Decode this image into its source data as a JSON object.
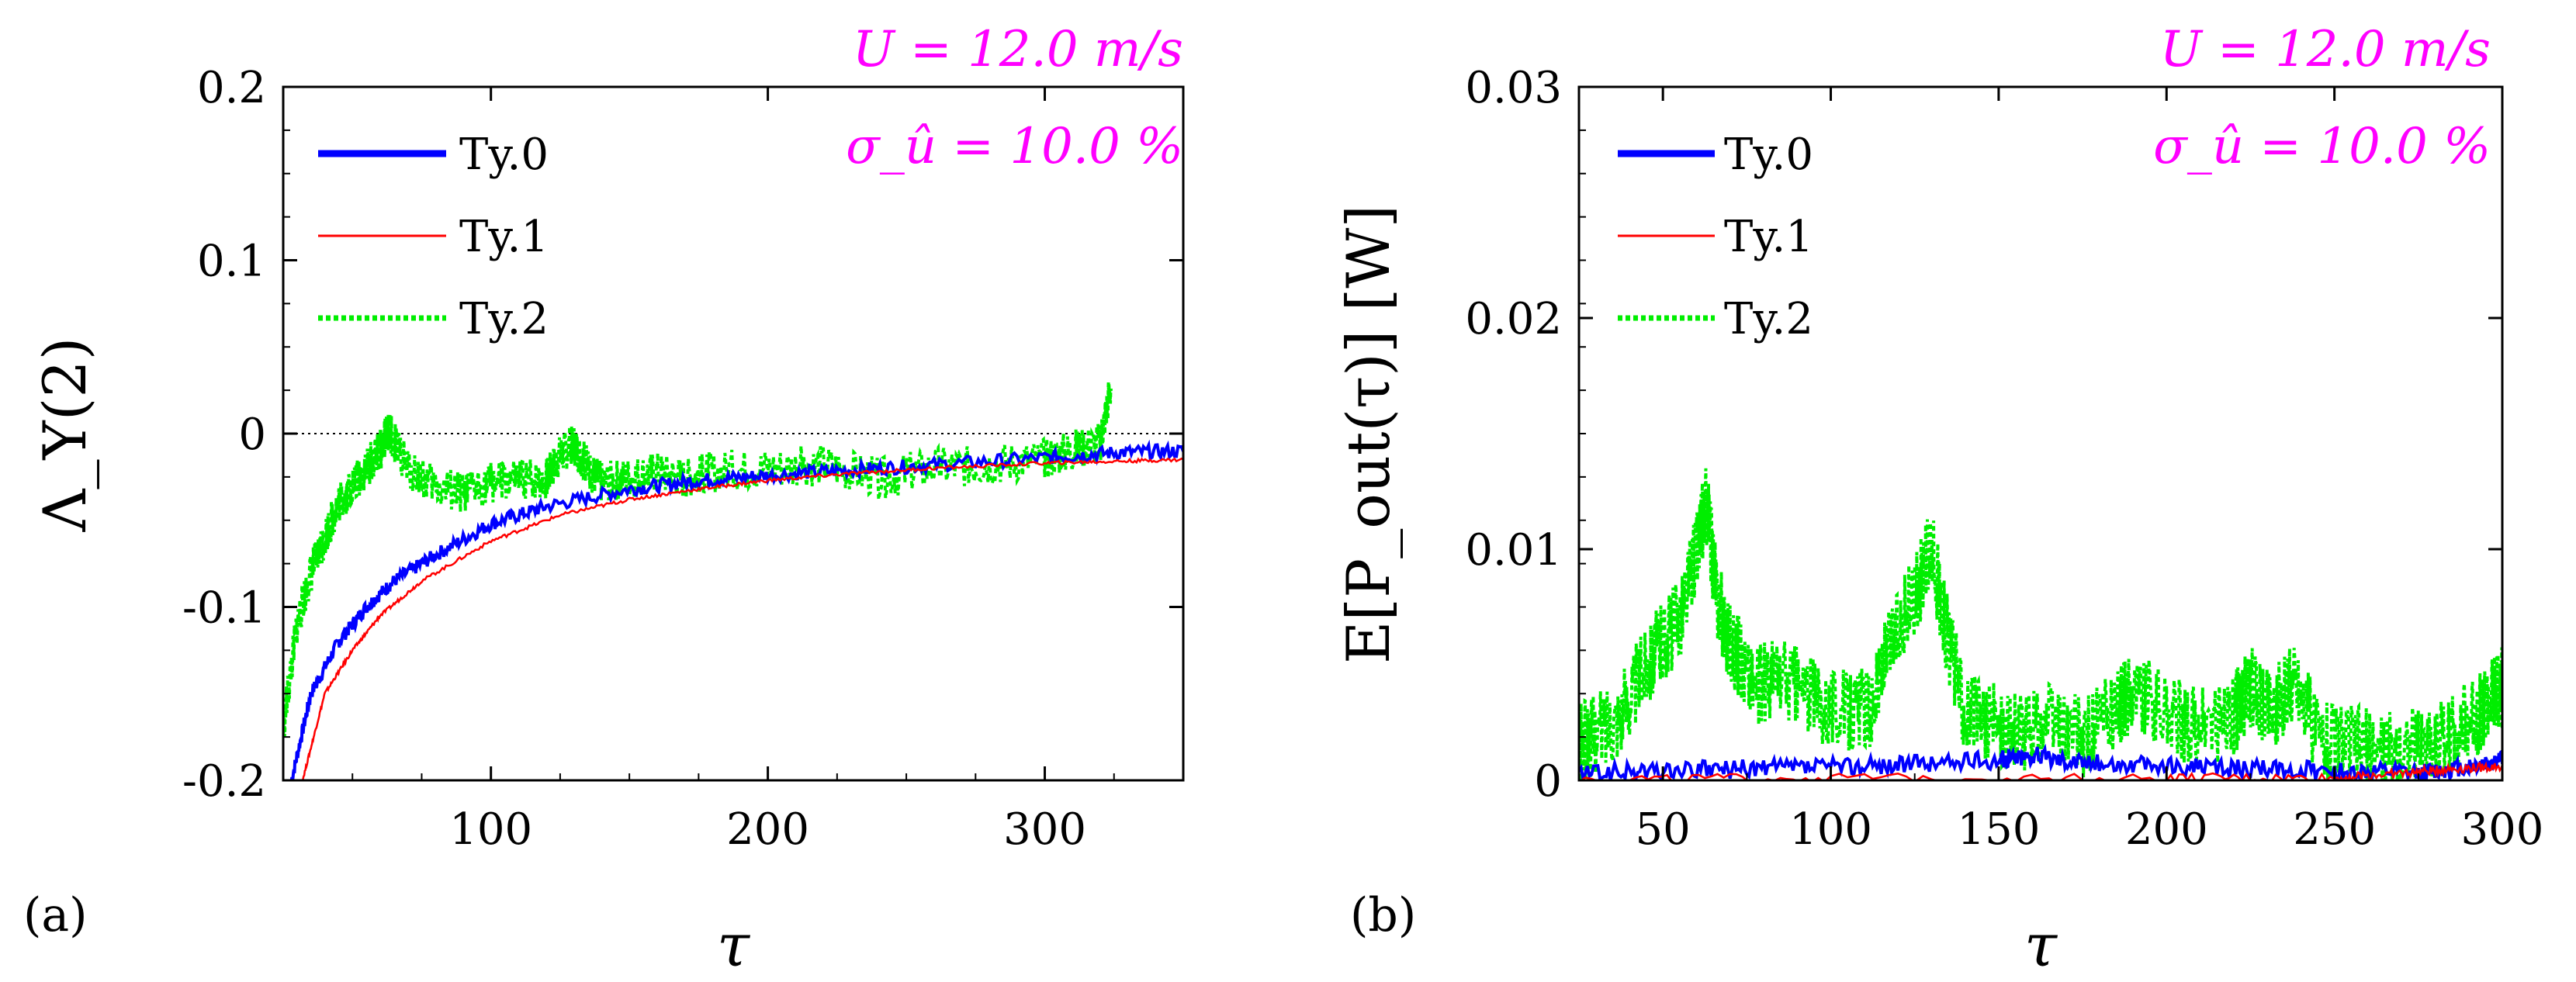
{
  "colors": {
    "ty0": "#0000ff",
    "ty1": "#ff0000",
    "ty2": "#00ee00",
    "annotation": "#ff00ff"
  },
  "chart_data": [
    {
      "panel": "(a)",
      "type": "line",
      "xlabel": "τ",
      "ylabel": "Λ_Υ(2)",
      "xlim": [
        25,
        350
      ],
      "ylim": [
        -0.2,
        0.2
      ],
      "xticks": [
        100,
        200,
        300
      ],
      "yticks": [
        -0.2,
        -0.1,
        0,
        0.1,
        0.2
      ],
      "xtick_labels": [
        "100",
        "200",
        "300"
      ],
      "ytick_labels": [
        "-0.2",
        "-0.1",
        "0",
        "0.1",
        "0.2"
      ],
      "reference_line": 0,
      "annotation_line1": "U = 12.0 m/s",
      "annotation_line2": "σ_û = 10.0 %",
      "series": [
        {
          "name": "Ty.0",
          "style": "solid-thick",
          "x": [
            28,
            35,
            45,
            55,
            65,
            80,
            100,
            120,
            150,
            175,
            200,
            230,
            260,
            300,
            325,
            350
          ],
          "y": [
            -0.2,
            -0.15,
            -0.12,
            -0.1,
            -0.085,
            -0.07,
            -0.052,
            -0.042,
            -0.032,
            -0.027,
            -0.024,
            -0.021,
            -0.018,
            -0.014,
            -0.011,
            -0.01
          ],
          "band": 0.004
        },
        {
          "name": "Ty.1",
          "style": "solid-thin",
          "x": [
            32,
            40,
            50,
            60,
            75,
            100,
            125,
            150,
            175,
            200,
            230,
            260,
            300,
            325,
            350
          ],
          "y": [
            -0.2,
            -0.15,
            -0.125,
            -0.105,
            -0.085,
            -0.062,
            -0.047,
            -0.038,
            -0.032,
            -0.027,
            -0.023,
            -0.02,
            -0.017,
            -0.016,
            -0.015
          ],
          "band": 0.001
        },
        {
          "name": "Ty.2",
          "style": "dotted",
          "x": [
            25,
            30,
            35,
            40,
            45,
            50,
            55,
            60,
            63,
            70,
            80,
            90,
            100,
            110,
            120,
            125,
            130,
            135,
            140,
            150,
            160,
            170,
            180,
            200,
            220,
            240,
            260,
            280,
            300,
            310,
            320,
            324
          ],
          "y": [
            -0.17,
            -0.11,
            -0.08,
            -0.06,
            -0.04,
            -0.03,
            -0.02,
            -0.01,
            0.002,
            -0.02,
            -0.03,
            -0.035,
            -0.028,
            -0.027,
            -0.026,
            -0.012,
            -0.006,
            -0.02,
            -0.028,
            -0.025,
            -0.022,
            -0.026,
            -0.022,
            -0.02,
            -0.018,
            -0.026,
            -0.02,
            -0.018,
            -0.015,
            -0.01,
            -0.005,
            0.028
          ],
          "band": 0.012
        }
      ]
    },
    {
      "panel": "(b)",
      "type": "line",
      "xlabel": "τ",
      "ylabel": "E[P_out(τ)] [W]",
      "xlim": [
        25,
        300
      ],
      "ylim": [
        0,
        0.03
      ],
      "xticks": [
        50,
        100,
        150,
        200,
        250,
        300
      ],
      "yticks": [
        0,
        0.01,
        0.02,
        0.03
      ],
      "xtick_labels": [
        "50",
        "100",
        "150",
        "200",
        "250",
        "300"
      ],
      "ytick_labels": [
        "0",
        "0.01",
        "0.02",
        "0.03"
      ],
      "annotation_line1": "U = 12.0 m/s",
      "annotation_line2": "σ_û = 10.0 %",
      "series": [
        {
          "name": "Ty.0",
          "style": "solid-thick",
          "x": [
            25,
            50,
            75,
            100,
            125,
            150,
            160,
            175,
            200,
            225,
            250,
            275,
            290,
            300
          ],
          "y": [
            0.0003,
            0.0004,
            0.0005,
            0.0006,
            0.0007,
            0.0009,
            0.0011,
            0.0008,
            0.0006,
            0.0005,
            0.0004,
            0.0003,
            0.0006,
            0.0009
          ],
          "band": 0.0004
        },
        {
          "name": "Ty.1",
          "style": "solid-thin",
          "x": [
            25,
            100,
            200,
            250,
            270,
            285,
            300
          ],
          "y": [
            5e-05,
            0.0001,
            0.0001,
            0.0001,
            0.0003,
            0.0005,
            0.0006
          ],
          "band": 0.0002
        },
        {
          "name": "Ty.2",
          "style": "dotted",
          "x": [
            25,
            30,
            38,
            45,
            50,
            55,
            60,
            63,
            66,
            70,
            78,
            85,
            95,
            105,
            112,
            118,
            125,
            130,
            135,
            140,
            148,
            155,
            165,
            175,
            185,
            190,
            200,
            210,
            220,
            225,
            232,
            238,
            245,
            255,
            265,
            275,
            285,
            292,
            297,
            300
          ],
          "y": [
            0.0015,
            0.002,
            0.003,
            0.005,
            0.006,
            0.007,
            0.01,
            0.012,
            0.008,
            0.006,
            0.004,
            0.0045,
            0.0035,
            0.003,
            0.0032,
            0.006,
            0.008,
            0.01,
            0.006,
            0.003,
            0.0025,
            0.002,
            0.0025,
            0.0018,
            0.003,
            0.004,
            0.0028,
            0.0022,
            0.0028,
            0.004,
            0.003,
            0.0045,
            0.002,
            0.0015,
            0.0012,
            0.0015,
            0.002,
            0.0028,
            0.0035,
            0.004
          ],
          "band": 0.0018
        }
      ]
    }
  ]
}
